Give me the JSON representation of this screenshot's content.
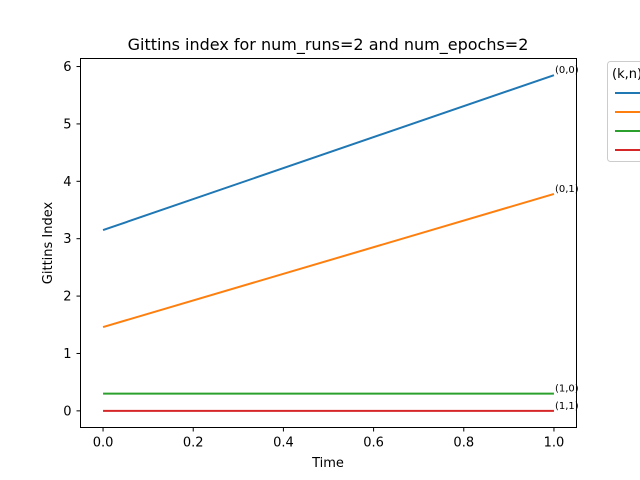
{
  "chart_data": {
    "type": "line",
    "title": "Gittins index for num_runs=2 and num_epochs=2",
    "xlabel": "Time",
    "ylabel": "Gittins Index",
    "xlim": [
      -0.05,
      1.05
    ],
    "ylim": [
      -0.29,
      6.14
    ],
    "xticks": [
      0.0,
      0.2,
      0.4,
      0.6,
      0.8,
      1.0
    ],
    "xtick_labels": [
      "0.0",
      "0.2",
      "0.4",
      "0.6",
      "0.8",
      "1.0"
    ],
    "yticks": [
      0,
      1,
      2,
      3,
      4,
      5,
      6
    ],
    "ytick_labels": [
      "0",
      "1",
      "2",
      "3",
      "4",
      "5",
      "6"
    ],
    "grid": false,
    "legend": {
      "title": "(k,n)",
      "placement": "outside-right"
    },
    "x": [
      0.0,
      1.0
    ],
    "series": [
      {
        "name": "(0,0)",
        "values": [
          3.15,
          5.85
        ],
        "color": "#1f77b4"
      },
      {
        "name": "(0,1)",
        "values": [
          1.46,
          3.78
        ],
        "color": "#ff7f0e"
      },
      {
        "name": "(1,0)",
        "values": [
          0.3,
          0.3
        ],
        "color": "#2ca02c"
      },
      {
        "name": "(1,1)",
        "values": [
          0.0,
          0.0
        ],
        "color": "#d62728"
      }
    ]
  }
}
